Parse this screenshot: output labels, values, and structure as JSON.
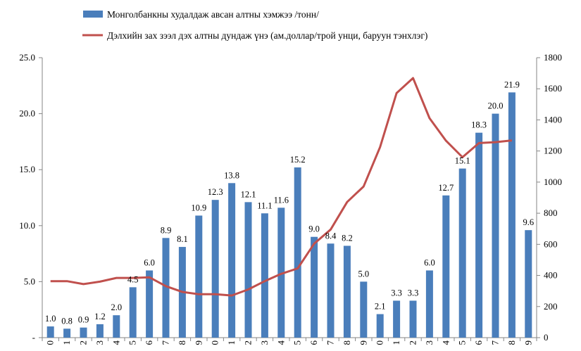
{
  "chart_data": {
    "type": "bar",
    "title": "",
    "xlabel": "",
    "categories": [
      "0",
      "1",
      "2",
      "3",
      "4",
      "5",
      "6",
      "7",
      "8",
      "9",
      "0",
      "1",
      "2",
      "3",
      "4",
      "5",
      "6",
      "7",
      "8",
      "9",
      "0",
      "1",
      "2",
      "3",
      "4",
      "5",
      "6",
      "7",
      "8",
      "9"
    ],
    "series": [
      {
        "name": "Монголбанкны худалдаж  авсан алтны хэмжээ /тонн/",
        "type": "bar",
        "axis": "left",
        "color": "#4a7ebb",
        "values": [
          1.0,
          0.8,
          0.9,
          1.2,
          2.0,
          4.5,
          6.0,
          8.9,
          8.1,
          10.9,
          12.3,
          13.8,
          12.1,
          11.1,
          11.6,
          15.2,
          9.0,
          8.4,
          8.2,
          5.0,
          2.1,
          3.3,
          3.3,
          6.0,
          12.7,
          15.1,
          18.3,
          20.0,
          21.9,
          9.6
        ],
        "labels": [
          "1.0",
          "0.8",
          "0.9",
          "1.2",
          "2.0",
          "4.5",
          "6.0",
          "8.9",
          "8.1",
          "10.9",
          "12.3",
          "13.8",
          "12.1",
          "11.1",
          "11.6",
          "15.2",
          "9.0",
          "8.4",
          "8.2",
          "5.0",
          "2.1",
          "3.3",
          "3.3",
          "6.0",
          "12.7",
          "15.1",
          "18.3",
          "20.0",
          "21.9",
          "9.6"
        ]
      },
      {
        "name": "Дэлхийн зах зээл дэх алтны дундаж үнэ (ам.доллар/трой унци, баруун тэнхлэг)",
        "type": "line",
        "axis": "right",
        "color": "#c0504d",
        "values": [
          363,
          363,
          344,
          360,
          384,
          384,
          388,
          331,
          294,
          279,
          279,
          271,
          310,
          363,
          410,
          445,
          604,
          695,
          872,
          972,
          1225,
          1572,
          1669,
          1411,
          1266,
          1160,
          1251,
          1257,
          1268,
          null
        ]
      }
    ],
    "y_left": {
      "ylim": [
        0,
        25
      ],
      "ticks": [
        "-",
        "5.0",
        "10.0",
        "15.0",
        "20.0",
        "25.0"
      ]
    },
    "y_right": {
      "ylim": [
        0,
        1800
      ],
      "ticks": [
        "0",
        "200",
        "400",
        "600",
        "800",
        "1000",
        "1200",
        "1400",
        "1600",
        "1800"
      ]
    },
    "grid": false,
    "legend_position": "top"
  }
}
